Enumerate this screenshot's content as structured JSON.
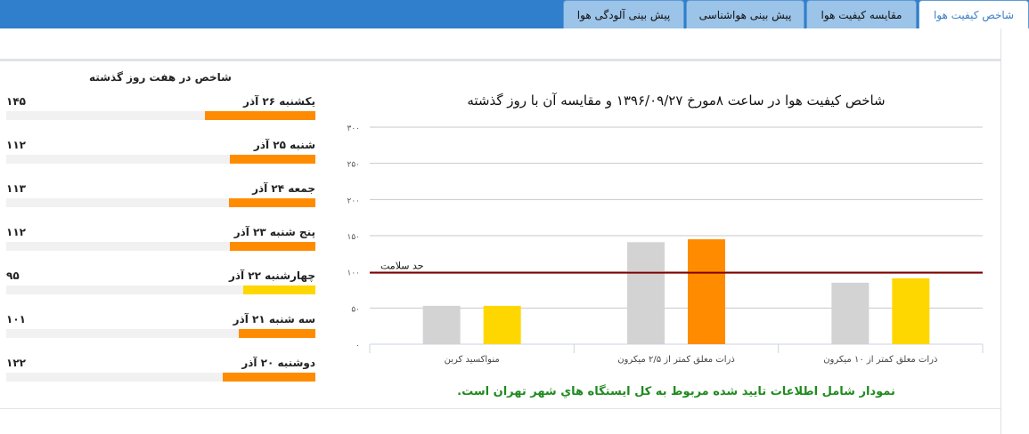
{
  "tabs": [
    {
      "label": "شاخص کیفیت هوا",
      "active": true
    },
    {
      "label": "مقایسه کیفیت هوا"
    },
    {
      "label": "پیش بینی هواشناسی"
    },
    {
      "label": "پیش بینی آلودگی هوا"
    }
  ],
  "week": {
    "title": "شاخص در هفت روز گذشته",
    "days": [
      {
        "label": "یکشنبه ۲۶ آذر",
        "value_text": "۱۴۵",
        "value": 145,
        "color": "#ff8c00"
      },
      {
        "label": "شنبه ۲۵ آذر",
        "value_text": "۱۱۲",
        "value": 112,
        "color": "#ff8c00"
      },
      {
        "label": "جمعه ۲۴ آذر",
        "value_text": "۱۱۳",
        "value": 113,
        "color": "#ff8c00"
      },
      {
        "label": "پنج شنبه ۲۳ آذر",
        "value_text": "۱۱۲",
        "value": 112,
        "color": "#ff8c00"
      },
      {
        "label": "چهارشنبه ۲۲ آذر",
        "value_text": "۹۵",
        "value": 95,
        "color": "#ffd700"
      },
      {
        "label": "سه شنبه ۲۱ آذر",
        "value_text": "۱۰۱",
        "value": 101,
        "color": "#ff8c00"
      },
      {
        "label": "دوشنبه ۲۰ آذر",
        "value_text": "۱۲۲",
        "value": 122,
        "color": "#ff8c00"
      }
    ]
  },
  "chart_data": {
    "type": "bar",
    "title": "شاخص کیفیت هوا در ساعت ۸مورخ ۱۳۹۶/۰۹/۲۷ و مقایسه آن با روز گذشته",
    "categories": [
      "منواکسید کربن",
      "ذرات معلق کمتر از ۲/۵ میکرون",
      "ذرات معلق کمتر از ۱۰ میکرون"
    ],
    "series": [
      {
        "values": [
          53,
          141,
          85
        ],
        "colors": [
          "#d3d3d3",
          "#d3d3d3",
          "#d3d3d3"
        ]
      },
      {
        "values": [
          53,
          145,
          91
        ],
        "colors": [
          "#ffd700",
          "#ff8c00",
          "#ffd700"
        ]
      }
    ],
    "ylim": [
      0,
      300
    ],
    "yticks": [
      0,
      50,
      100,
      150,
      200,
      250,
      300
    ],
    "ytick_labels": [
      "۰",
      "۵۰",
      "۱۰۰",
      "۱۵۰",
      "۲۰۰",
      "۲۵۰",
      "۳۰۰"
    ],
    "grid": true,
    "threshold": {
      "value": 100,
      "label": "حد سلامت",
      "color": "#800000"
    }
  },
  "note": "نمودار شامل اطلاعات تایید شده مربوط به کل ایستگاه هاي شهر تهران است."
}
